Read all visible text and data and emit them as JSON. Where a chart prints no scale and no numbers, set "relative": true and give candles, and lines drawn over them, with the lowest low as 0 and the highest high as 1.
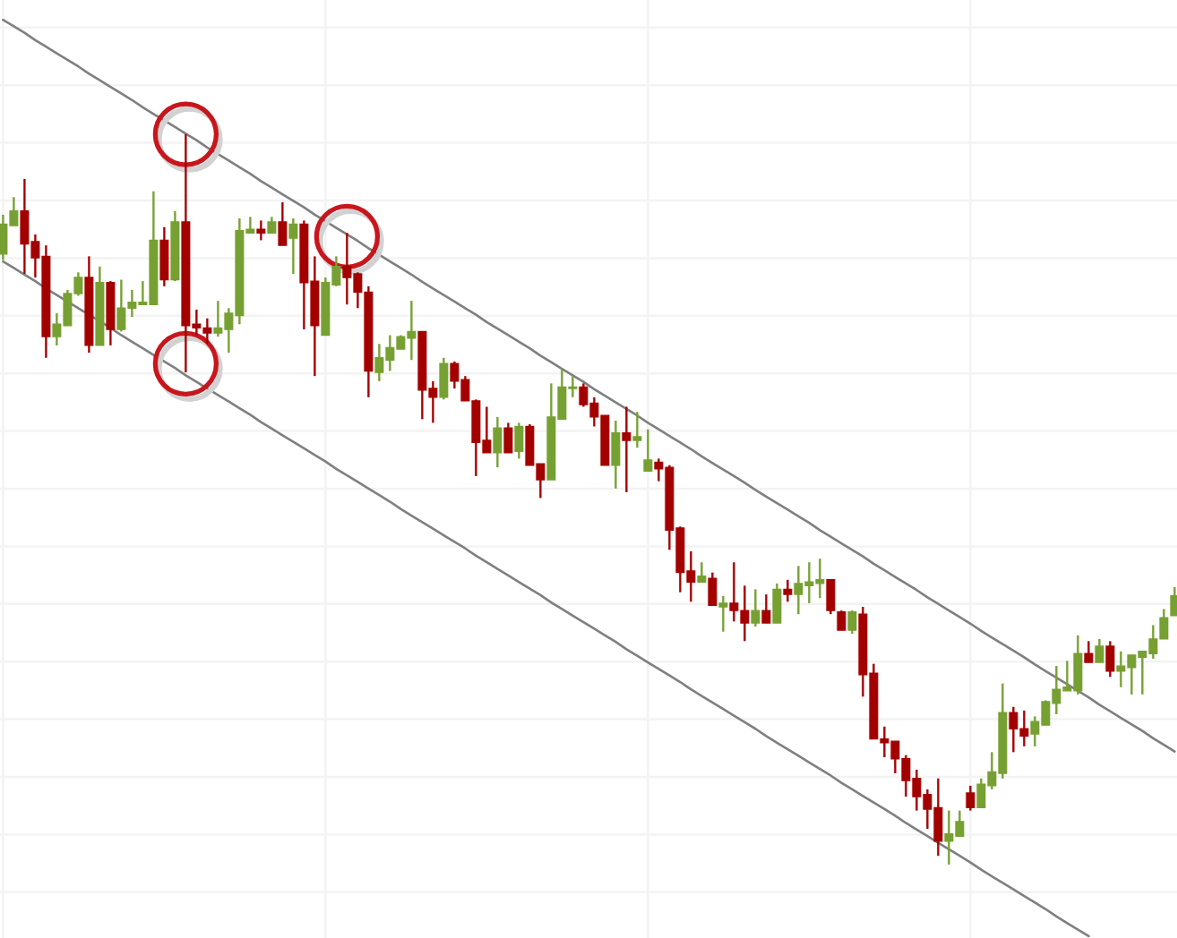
{
  "chart_data": {
    "type": "candlestick",
    "relative": true,
    "grid": true,
    "categories": [
      null,
      null,
      null,
      null,
      null,
      null,
      null,
      null,
      null,
      null,
      null,
      null,
      null,
      null,
      null,
      null,
      null,
      null,
      null,
      null,
      null,
      null,
      null,
      null,
      null,
      null,
      null,
      null,
      null,
      null,
      null,
      null,
      null,
      null,
      null,
      null,
      null,
      null,
      null,
      null,
      null,
      null,
      null,
      null,
      null,
      null,
      null,
      null,
      null,
      null,
      null,
      null,
      null,
      null,
      null,
      null,
      null,
      null,
      null,
      null,
      null,
      null,
      null,
      null,
      null,
      null,
      null,
      null,
      null,
      null,
      null,
      null,
      null,
      null,
      null,
      null,
      null,
      null,
      null,
      null,
      null,
      null,
      null,
      null,
      null,
      null,
      null,
      null,
      null,
      null,
      null,
      null,
      null,
      null,
      null,
      null,
      null,
      null,
      null,
      null,
      null,
      null,
      null,
      null,
      null,
      null,
      null,
      null,
      null,
      null
    ],
    "ohlc": [
      [
        0.836,
        0.89,
        0.828,
        0.877
      ],
      [
        0.875,
        0.914,
        0.875,
        0.895
      ],
      [
        0.895,
        0.939,
        0.809,
        0.85
      ],
      [
        0.853,
        0.863,
        0.804,
        0.831
      ],
      [
        0.833,
        0.848,
        0.694,
        0.723
      ],
      [
        0.723,
        0.755,
        0.711,
        0.74
      ],
      [
        0.738,
        0.787,
        0.738,
        0.782
      ],
      [
        0.782,
        0.811,
        0.779,
        0.804
      ],
      [
        0.804,
        0.833,
        0.701,
        0.711
      ],
      [
        0.711,
        0.819,
        0.711,
        0.797
      ],
      [
        0.797,
        0.799,
        0.711,
        0.733
      ],
      [
        0.733,
        0.801,
        0.73,
        0.762
      ],
      [
        0.762,
        0.787,
        0.75,
        0.77
      ],
      [
        0.767,
        0.799,
        0.767,
        0.77
      ],
      [
        0.767,
        0.922,
        0.767,
        0.855
      ],
      [
        0.855,
        0.873,
        0.792,
        0.801
      ],
      [
        0.801,
        0.895,
        0.799,
        0.88
      ],
      [
        0.88,
        1.0,
        0.674,
        0.738
      ],
      [
        0.74,
        0.76,
        0.725,
        0.735
      ],
      [
        0.735,
        0.748,
        0.713,
        0.728
      ],
      [
        0.728,
        0.772,
        0.723,
        0.735
      ],
      [
        0.733,
        0.762,
        0.701,
        0.755
      ],
      [
        0.752,
        0.885,
        0.74,
        0.868
      ],
      [
        0.865,
        0.887,
        0.865,
        0.87
      ],
      [
        0.87,
        0.882,
        0.855,
        0.865
      ],
      [
        0.865,
        0.887,
        0.865,
        0.88
      ],
      [
        0.88,
        0.907,
        0.848,
        0.848
      ],
      [
        0.858,
        0.885,
        0.809,
        0.877
      ],
      [
        0.877,
        0.882,
        0.733,
        0.797
      ],
      [
        0.799,
        0.833,
        0.669,
        0.738
      ],
      [
        0.725,
        0.804,
        0.725,
        0.797
      ],
      [
        0.794,
        0.833,
        0.792,
        0.819
      ],
      [
        0.819,
        0.865,
        0.767,
        0.804
      ],
      [
        0.809,
        0.811,
        0.762,
        0.784
      ],
      [
        0.784,
        0.792,
        0.64,
        0.676
      ],
      [
        0.674,
        0.713,
        0.662,
        0.694
      ],
      [
        0.691,
        0.725,
        0.676,
        0.708
      ],
      [
        0.706,
        0.725,
        0.706,
        0.723
      ],
      [
        0.721,
        0.772,
        0.691,
        0.73
      ],
      [
        0.73,
        0.73,
        0.61,
        0.65
      ],
      [
        0.652,
        0.662,
        0.605,
        0.64
      ],
      [
        0.64,
        0.694,
        0.637,
        0.686
      ],
      [
        0.686,
        0.689,
        0.652,
        0.662
      ],
      [
        0.664,
        0.669,
        0.635,
        0.635
      ],
      [
        0.635,
        0.637,
        0.532,
        0.578
      ],
      [
        0.581,
        0.627,
        0.564,
        0.564
      ],
      [
        0.564,
        0.613,
        0.544,
        0.598
      ],
      [
        0.598,
        0.605,
        0.564,
        0.564
      ],
      [
        0.566,
        0.605,
        0.556,
        0.6
      ],
      [
        0.6,
        0.603,
        0.547,
        0.547
      ],
      [
        0.549,
        0.549,
        0.502,
        0.527
      ],
      [
        0.527,
        0.659,
        0.527,
        0.613
      ],
      [
        0.61,
        0.679,
        0.61,
        0.654
      ],
      [
        0.652,
        0.669,
        0.64,
        0.654
      ],
      [
        0.654,
        0.659,
        0.627,
        0.63
      ],
      [
        0.632,
        0.64,
        0.6,
        0.613
      ],
      [
        0.615,
        0.615,
        0.547,
        0.547
      ],
      [
        0.547,
        0.608,
        0.515,
        0.591
      ],
      [
        0.591,
        0.627,
        0.51,
        0.581
      ],
      [
        0.581,
        0.62,
        0.571,
        0.586
      ],
      [
        0.539,
        0.596,
        0.539,
        0.554
      ],
      [
        0.551,
        0.556,
        0.525,
        0.542
      ],
      [
        0.544,
        0.547,
        0.431,
        0.458
      ],
      [
        0.461,
        0.463,
        0.373,
        0.4
      ],
      [
        0.402,
        0.429,
        0.36,
        0.387
      ],
      [
        0.387,
        0.414,
        0.387,
        0.395
      ],
      [
        0.392,
        0.4,
        0.355,
        0.355
      ],
      [
        0.353,
        0.368,
        0.319,
        0.358
      ],
      [
        0.358,
        0.414,
        0.333,
        0.348
      ],
      [
        0.348,
        0.382,
        0.306,
        0.331
      ],
      [
        0.331,
        0.377,
        0.326,
        0.348
      ],
      [
        0.348,
        0.37,
        0.331,
        0.331
      ],
      [
        0.331,
        0.385,
        0.331,
        0.377
      ],
      [
        0.377,
        0.39,
        0.36,
        0.37
      ],
      [
        0.37,
        0.409,
        0.343,
        0.385
      ],
      [
        0.382,
        0.414,
        0.358,
        0.387
      ],
      [
        0.385,
        0.419,
        0.365,
        0.39
      ],
      [
        0.39,
        0.39,
        0.343,
        0.348
      ],
      [
        0.346,
        0.348,
        0.321,
        0.321
      ],
      [
        0.321,
        0.348,
        0.316,
        0.346
      ],
      [
        0.343,
        0.353,
        0.23,
        0.26
      ],
      [
        0.262,
        0.275,
        0.172,
        0.172
      ],
      [
        0.172,
        0.189,
        0.147,
        0.167
      ],
      [
        0.169,
        0.169,
        0.125,
        0.145
      ],
      [
        0.145,
        0.15,
        0.093,
        0.115
      ],
      [
        0.118,
        0.13,
        0.074,
        0.093
      ],
      [
        0.096,
        0.103,
        0.049,
        0.076
      ],
      [
        0.078,
        0.118,
        0.012,
        0.032
      ],
      [
        0.032,
        0.074,
        0.0,
        0.042
      ],
      [
        0.039,
        0.074,
        0.039,
        0.059
      ],
      [
        0.098,
        0.108,
        0.074,
        0.078
      ],
      [
        0.078,
        0.118,
        0.078,
        0.11
      ],
      [
        0.108,
        0.154,
        0.103,
        0.127
      ],
      [
        0.125,
        0.248,
        0.118,
        0.208
      ],
      [
        0.208,
        0.216,
        0.154,
        0.186
      ],
      [
        0.186,
        0.211,
        0.162,
        0.176
      ],
      [
        0.179,
        0.203,
        0.162,
        0.196
      ],
      [
        0.191,
        0.225,
        0.191,
        0.223
      ],
      [
        0.221,
        0.272,
        0.206,
        0.24
      ],
      [
        0.238,
        0.279,
        0.238,
        0.243
      ],
      [
        0.238,
        0.314,
        0.233,
        0.289
      ],
      [
        0.289,
        0.306,
        0.277,
        0.277
      ],
      [
        0.277,
        0.309,
        0.277,
        0.299
      ],
      [
        0.299,
        0.306,
        0.257,
        0.265
      ],
      [
        0.265,
        0.292,
        0.243,
        0.272
      ],
      [
        0.27,
        0.287,
        0.233,
        0.287
      ],
      [
        0.284,
        0.292,
        0.233,
        0.292
      ],
      [
        0.289,
        0.328,
        0.282,
        0.309
      ],
      [
        0.309,
        0.35,
        0.309,
        0.338
      ],
      [
        0.341,
        0.38,
        0.341,
        0.368
      ]
    ],
    "colors": [
      "#76a032",
      "#76a032",
      "#a30000",
      "#a30000",
      "#a30000",
      "#76a032",
      "#76a032",
      "#76a032",
      "#a30000",
      "#76a032",
      "#a30000",
      "#76a032",
      "#76a032",
      "#76a032",
      "#76a032",
      "#a30000",
      "#76a032",
      "#a30000",
      "#a30000",
      "#a30000",
      "#76a032",
      "#76a032",
      "#76a032",
      "#76a032",
      "#a30000",
      "#76a032",
      "#a30000",
      "#76a032",
      "#a30000",
      "#a30000",
      "#76a032",
      "#76a032",
      "#a30000",
      "#a30000",
      "#a30000",
      "#76a032",
      "#76a032",
      "#76a032",
      "#76a032",
      "#a30000",
      "#a30000",
      "#76a032",
      "#a30000",
      "#a30000",
      "#a30000",
      "#a30000",
      "#76a032",
      "#a30000",
      "#76a032",
      "#a30000",
      "#a30000",
      "#76a032",
      "#76a032",
      "#76a032",
      "#a30000",
      "#a30000",
      "#a30000",
      "#76a032",
      "#a30000",
      "#76a032",
      "#76a032",
      "#a30000",
      "#a30000",
      "#a30000",
      "#a30000",
      "#76a032",
      "#a30000",
      "#76a032",
      "#a30000",
      "#a30000",
      "#76a032",
      "#a30000",
      "#76a032",
      "#a30000",
      "#76a032",
      "#76a032",
      "#76a032",
      "#a30000",
      "#a30000",
      "#76a032",
      "#a30000",
      "#a30000",
      "#a30000",
      "#a30000",
      "#a30000",
      "#a30000",
      "#a30000",
      "#a30000",
      "#76a032",
      "#76a032",
      "#a30000",
      "#76a032",
      "#76a032",
      "#76a032",
      "#a30000",
      "#a30000",
      "#76a032",
      "#76a032",
      "#76a032",
      "#76a032",
      "#76a032",
      "#a30000",
      "#76a032",
      "#a30000",
      "#76a032",
      "#76a032",
      "#76a032",
      "#76a032",
      "#76a032",
      "#76a032"
    ],
    "series": [
      {
        "type": "line",
        "color": "#808080",
        "values": [
          1.157,
          1.148,
          1.139,
          1.129,
          1.12,
          1.111,
          1.102,
          1.093,
          1.083,
          1.074,
          1.065,
          1.056,
          1.047,
          1.037,
          1.028,
          1.019,
          1.01,
          1.001,
          0.992,
          0.982,
          0.973,
          0.964,
          0.955,
          0.946,
          0.936,
          0.927,
          0.918,
          0.909,
          0.9,
          0.89,
          0.881,
          0.872,
          0.863,
          0.854,
          0.844,
          0.835,
          0.826,
          0.817,
          0.808,
          0.798,
          0.789,
          0.78,
          0.771,
          0.762,
          0.753,
          0.743,
          0.734,
          0.725,
          0.716,
          0.707,
          0.697,
          0.688,
          0.679,
          0.67,
          0.661,
          0.651,
          0.642,
          0.633,
          0.624,
          0.615,
          0.605,
          0.596,
          0.587,
          0.578,
          0.569,
          0.559,
          0.55,
          0.541,
          0.532,
          0.523,
          0.513,
          0.504,
          0.495,
          0.486,
          0.477,
          0.468,
          0.458,
          0.449,
          0.44,
          0.431,
          0.422,
          0.412,
          0.403,
          0.394,
          0.385,
          0.376,
          0.366,
          0.357,
          0.348,
          0.339,
          0.33,
          0.32,
          0.311,
          0.302,
          0.293,
          0.284,
          0.274,
          0.265,
          0.256,
          0.247,
          0.238,
          0.229,
          0.219,
          0.21,
          0.201,
          0.192,
          0.183,
          0.173,
          0.164,
          0.155
        ]
      },
      {
        "type": "line",
        "color": "#808080",
        "values": [
          0.826,
          0.817,
          0.808,
          0.799,
          0.789,
          0.78,
          0.771,
          0.762,
          0.753,
          0.744,
          0.735,
          0.725,
          0.716,
          0.707,
          0.698,
          0.689,
          0.68,
          0.67,
          0.661,
          0.652,
          0.643,
          0.634,
          0.625,
          0.616,
          0.606,
          0.597,
          0.588,
          0.579,
          0.57,
          0.561,
          0.552,
          0.542,
          0.533,
          0.524,
          0.515,
          0.506,
          0.497,
          0.487,
          0.478,
          0.469,
          0.46,
          0.451,
          0.442,
          0.433,
          0.423,
          0.414,
          0.405,
          0.396,
          0.387,
          0.378,
          0.369,
          0.359,
          0.35,
          0.341,
          0.332,
          0.323,
          0.314,
          0.305,
          0.295,
          0.286,
          0.277,
          0.268,
          0.259,
          0.25,
          0.24,
          0.231,
          0.222,
          0.213,
          0.204,
          0.195,
          0.186,
          0.176,
          0.167,
          0.158,
          0.149,
          0.14,
          0.131,
          0.122,
          0.112,
          0.103,
          0.094,
          0.085,
          0.076,
          0.067,
          0.057,
          0.048,
          0.039,
          0.03,
          0.021,
          0.012,
          0.003,
          -0.007,
          -0.016,
          -0.025,
          -0.034,
          -0.043,
          -0.052,
          -0.061,
          -0.071,
          -0.08,
          -0.089,
          -0.098,
          null,
          null,
          null,
          null,
          null,
          null,
          null,
          null
        ]
      },
      {
        "type": "scatter",
        "color": "#c8161d",
        "marker": "circle",
        "values": [
          null,
          null,
          null,
          null,
          null,
          null,
          null,
          null,
          null,
          null,
          null,
          null,
          null,
          null,
          null,
          null,
          null,
          1.0,
          null,
          null,
          null,
          null,
          null,
          null,
          null,
          null,
          null,
          null,
          null,
          null,
          null,
          null,
          0.86,
          null,
          null,
          null,
          null,
          null,
          null,
          null,
          null,
          null,
          null,
          null,
          null,
          null,
          null,
          null,
          null,
          null,
          null,
          null,
          null,
          null,
          null,
          null,
          null,
          null,
          null,
          null,
          null,
          null,
          null,
          null,
          null,
          null,
          null,
          null,
          null,
          null,
          null,
          null,
          null,
          null,
          null,
          null,
          null,
          null,
          null,
          null,
          null,
          null,
          null,
          null,
          null,
          null,
          null,
          null,
          null,
          null,
          null,
          null,
          null,
          null,
          null,
          null,
          null,
          null,
          null,
          null,
          null,
          null,
          null,
          null,
          null,
          null,
          null,
          null,
          null,
          null
        ]
      },
      {
        "type": "scatter",
        "color": "#c8161d",
        "marker": "circle",
        "values": [
          null,
          null,
          null,
          null,
          null,
          null,
          null,
          null,
          null,
          null,
          null,
          null,
          null,
          null,
          null,
          null,
          null,
          0.686,
          null,
          null,
          null,
          null,
          null,
          null,
          null,
          null,
          null,
          null,
          null,
          null,
          null,
          null,
          null,
          null,
          null,
          null,
          null,
          null,
          null,
          null,
          null,
          null,
          null,
          null,
          null,
          null,
          null,
          null,
          null,
          null,
          null,
          null,
          null,
          null,
          null,
          null,
          null,
          null,
          null,
          null,
          null,
          null,
          null,
          null,
          null,
          null,
          null,
          null,
          null,
          null,
          null,
          null,
          null,
          null,
          null,
          null,
          null,
          null,
          null,
          null,
          null,
          null,
          null,
          null,
          null,
          null,
          null,
          null,
          null,
          null,
          null,
          null,
          null,
          null,
          null,
          null,
          null,
          null,
          null,
          null,
          null,
          null,
          null,
          null,
          null,
          null,
          null,
          null,
          null,
          null
        ]
      }
    ]
  }
}
